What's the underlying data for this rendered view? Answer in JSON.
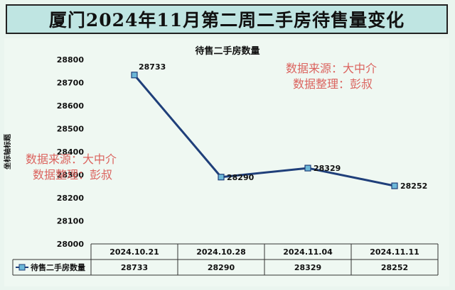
{
  "page_title": "厦门2024年11月第二周二手房待售量变化",
  "watermarks": [
    {
      "line1": "数据来源：大中介",
      "line2": "数据整理：彭叔"
    },
    {
      "line1": "数据来源：大中介",
      "line2": "数据整理：彭叔"
    }
  ],
  "colors": {
    "line": "#1f3f7a",
    "title_bg": "#bfe5e2",
    "watermark": "#d9534f"
  },
  "chart_data": {
    "type": "line",
    "title": "待售二手房数量",
    "xlabel": "",
    "ylabel": "坐标轴标题",
    "categories": [
      "2024.10.21",
      "2024.10.28",
      "2024.11.04",
      "2024.11.11"
    ],
    "series": [
      {
        "name": "待售二手房数量",
        "values": [
          28733,
          28290,
          28329,
          28252
        ]
      }
    ],
    "ylim": [
      28000,
      28800
    ],
    "yticks": [
      28000,
      28100,
      28200,
      28300,
      28400,
      28500,
      28600,
      28700,
      28800
    ],
    "data_labels": [
      "28733",
      "28290",
      "28329",
      "28252"
    ],
    "data_table": true,
    "grid": false
  }
}
